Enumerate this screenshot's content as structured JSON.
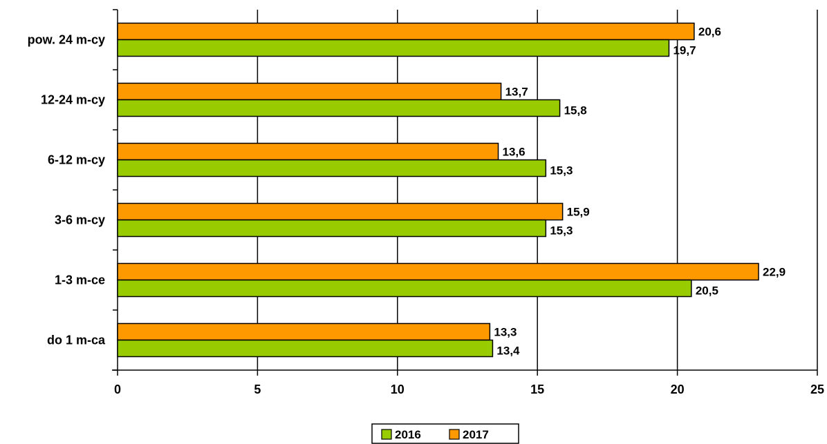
{
  "chart_data": {
    "type": "bar",
    "orientation": "horizontal",
    "categories": [
      "do 1 m-ca",
      "1-3 m-ce",
      "3-6 m-cy",
      "6-12 m-cy",
      "12-24 m-cy",
      "pow. 24 m-cy"
    ],
    "series": [
      {
        "name": "2016",
        "color": "#99cc00",
        "values": [
          13.4,
          20.5,
          15.3,
          15.3,
          15.8,
          19.7
        ]
      },
      {
        "name": "2017",
        "color": "#ff9900",
        "values": [
          13.3,
          22.9,
          15.9,
          13.6,
          13.7,
          20.6
        ]
      }
    ],
    "value_labels": {
      "2016": [
        "13,4",
        "20,5",
        "15,3",
        "15,3",
        "15,8",
        "19,7"
      ],
      "2017": [
        "13,3",
        "22,9",
        "15,9",
        "13,6",
        "13,7",
        "20,6"
      ]
    },
    "xlim": [
      0,
      25
    ],
    "x_ticks": [
      0,
      5,
      10,
      15,
      20,
      25
    ],
    "x_tick_labels": [
      "0",
      "5",
      "10",
      "15",
      "20",
      "25"
    ],
    "grid": "vertical",
    "legend": "bottom",
    "title": "",
    "xlabel": "",
    "ylabel": ""
  }
}
